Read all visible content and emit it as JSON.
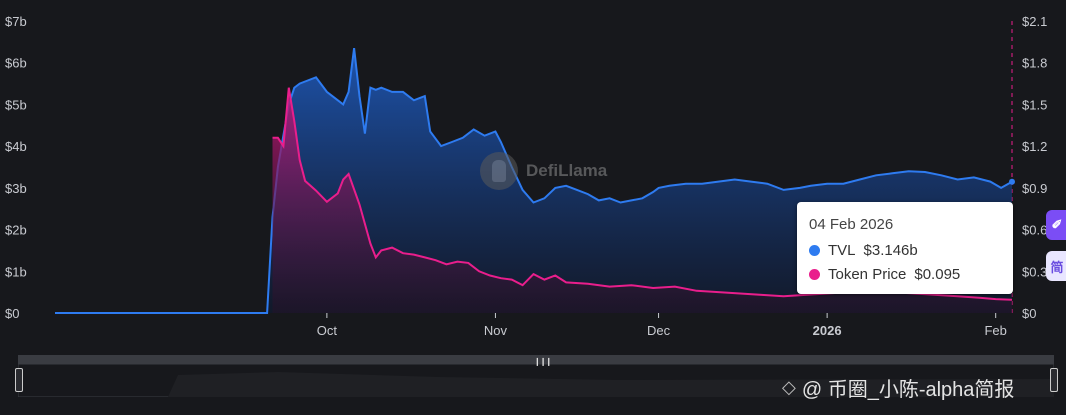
{
  "chart_data": {
    "type": "area",
    "x_ticks": [
      "Oct",
      "Nov",
      "Dec",
      "2026",
      "Feb"
    ],
    "y_left_ticks": [
      "$0",
      "$1b",
      "$2b",
      "$3b",
      "$4b",
      "$5b",
      "$6b",
      "$7b"
    ],
    "y_left_range": [
      0,
      7
    ],
    "y_right_ticks": [
      "$0",
      "$0.3",
      "$0.6",
      "$0.9",
      "$1.2",
      "$1.5",
      "$1.8",
      "$2.1"
    ],
    "y_right_range": [
      0,
      2.1
    ],
    "grid": false,
    "series": [
      {
        "name": "TVL",
        "color": "#2e7bf0",
        "axis": "left",
        "x": [
          "2025-08-12",
          "2025-09-20",
          "2025-09-21",
          "2025-09-22",
          "2025-09-24",
          "2025-09-25",
          "2025-09-26",
          "2025-09-27",
          "2025-09-29",
          "2025-10-01",
          "2025-10-02",
          "2025-10-04",
          "2025-10-05",
          "2025-10-06",
          "2025-10-07",
          "2025-10-08",
          "2025-10-09",
          "2025-10-10",
          "2025-10-11",
          "2025-10-13",
          "2025-10-15",
          "2025-10-17",
          "2025-10-18",
          "2025-10-19",
          "2025-10-20",
          "2025-10-22",
          "2025-10-24",
          "2025-10-26",
          "2025-10-28",
          "2025-10-30",
          "2025-11-01",
          "2025-11-02",
          "2025-11-04",
          "2025-11-06",
          "2025-11-08",
          "2025-11-10",
          "2025-11-12",
          "2025-11-14",
          "2025-11-16",
          "2025-11-18",
          "2025-11-20",
          "2025-11-22",
          "2025-11-24",
          "2025-11-26",
          "2025-11-28",
          "2025-11-30",
          "2025-12-01",
          "2025-12-03",
          "2025-12-06",
          "2025-12-09",
          "2025-12-12",
          "2025-12-15",
          "2025-12-18",
          "2025-12-21",
          "2025-12-24",
          "2025-12-27",
          "2025-12-29",
          "2026-01-01",
          "2026-01-04",
          "2026-01-07",
          "2026-01-10",
          "2026-01-13",
          "2026-01-16",
          "2026-01-19",
          "2026-01-22",
          "2026-01-25",
          "2026-01-28",
          "2026-01-31",
          "2026-02-02",
          "2026-02-04"
        ],
        "values": [
          0,
          0,
          2.3,
          3.5,
          5.0,
          5.4,
          5.5,
          5.55,
          5.65,
          5.3,
          5.2,
          5.0,
          5.3,
          6.35,
          5.2,
          4.3,
          5.4,
          5.35,
          5.4,
          5.3,
          5.3,
          5.1,
          5.15,
          5.2,
          4.35,
          4.0,
          4.1,
          4.2,
          4.4,
          4.25,
          4.35,
          4.1,
          3.5,
          2.95,
          2.65,
          2.75,
          3.0,
          3.05,
          2.95,
          2.85,
          2.7,
          2.75,
          2.65,
          2.7,
          2.75,
          2.9,
          3.0,
          3.05,
          3.1,
          3.1,
          3.15,
          3.2,
          3.15,
          3.1,
          2.95,
          3.0,
          3.05,
          3.1,
          3.1,
          3.2,
          3.3,
          3.35,
          3.4,
          3.38,
          3.3,
          3.2,
          3.25,
          3.15,
          3.0,
          3.146
        ]
      },
      {
        "name": "Token Price",
        "color": "#e91e8c",
        "axis": "right",
        "x": [
          "2025-09-21",
          "2025-09-22",
          "2025-09-23",
          "2025-09-24",
          "2025-09-25",
          "2025-09-26",
          "2025-09-27",
          "2025-09-29",
          "2025-10-01",
          "2025-10-03",
          "2025-10-04",
          "2025-10-05",
          "2025-10-07",
          "2025-10-09",
          "2025-10-10",
          "2025-10-11",
          "2025-10-13",
          "2025-10-15",
          "2025-10-17",
          "2025-10-19",
          "2025-10-21",
          "2025-10-23",
          "2025-10-25",
          "2025-10-27",
          "2025-10-29",
          "2025-10-31",
          "2025-11-02",
          "2025-11-04",
          "2025-11-06",
          "2025-11-08",
          "2025-11-10",
          "2025-11-12",
          "2025-11-14",
          "2025-11-18",
          "2025-11-22",
          "2025-11-26",
          "2025-11-30",
          "2025-12-04",
          "2025-12-08",
          "2025-12-12",
          "2025-12-16",
          "2025-12-20",
          "2025-12-24",
          "2025-12-28",
          "2026-01-01",
          "2026-01-05",
          "2026-01-09",
          "2026-01-13",
          "2026-01-17",
          "2026-01-21",
          "2026-01-25",
          "2026-01-29",
          "2026-02-01",
          "2026-02-04"
        ],
        "values": [
          1.26,
          1.26,
          1.2,
          1.62,
          1.38,
          1.1,
          0.95,
          0.88,
          0.8,
          0.86,
          0.96,
          1.0,
          0.78,
          0.5,
          0.4,
          0.45,
          0.47,
          0.43,
          0.42,
          0.4,
          0.38,
          0.35,
          0.37,
          0.36,
          0.3,
          0.27,
          0.25,
          0.24,
          0.2,
          0.28,
          0.24,
          0.27,
          0.22,
          0.21,
          0.19,
          0.2,
          0.18,
          0.19,
          0.16,
          0.15,
          0.14,
          0.13,
          0.12,
          0.13,
          0.14,
          0.15,
          0.16,
          0.15,
          0.14,
          0.13,
          0.12,
          0.11,
          0.1,
          0.095
        ]
      }
    ]
  },
  "tooltip": {
    "date": "04 Feb 2026",
    "rows": [
      {
        "label": "TVL",
        "value": "$3.146b",
        "color": "#2e7bf0"
      },
      {
        "label": "Token Price",
        "value": "$0.095",
        "color": "#e91e8c"
      }
    ]
  },
  "watermark": {
    "text": "DefiLlama"
  },
  "side_buttons": [
    "✐",
    "简"
  ],
  "brush": {
    "grip": "❙❙❙"
  },
  "footer": {
    "icon": "◇",
    "text": "@ 币圈_小陈-alpha简报"
  }
}
